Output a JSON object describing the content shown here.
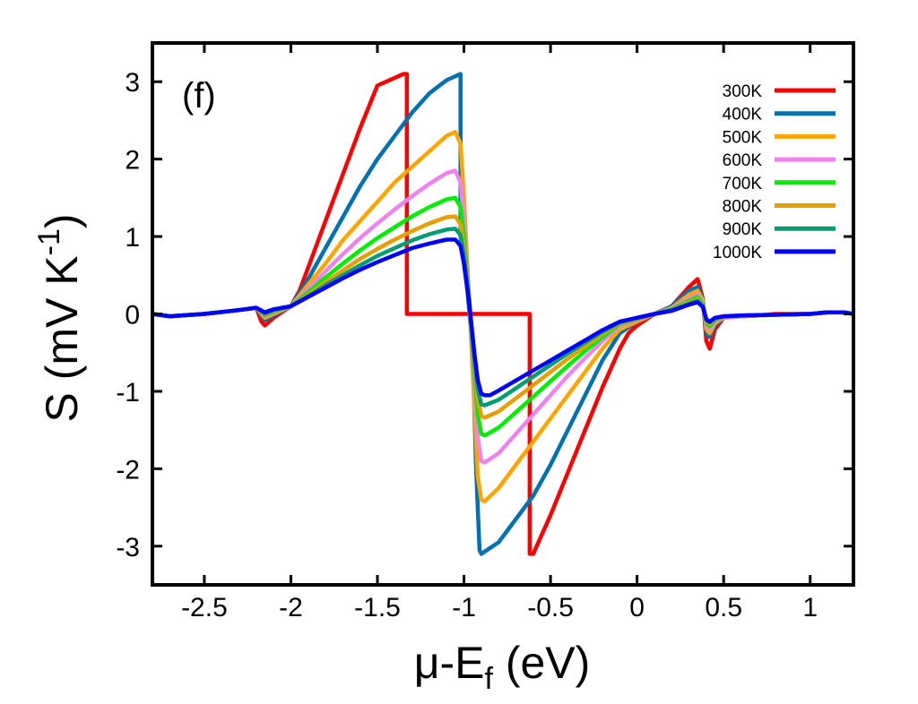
{
  "chart_data": {
    "type": "line",
    "title": "",
    "panel_label": "(f)",
    "xlabel": {
      "prefix": "μ-E",
      "sub": "f",
      "suffix": " (eV)"
    },
    "ylabel": {
      "prefix": "S (mV K",
      "sup": "-1",
      "suffix": ")"
    },
    "xlim": [
      -2.8,
      1.25
    ],
    "ylim": [
      -3.5,
      3.5
    ],
    "xticks": [
      -2.5,
      -2,
      -1.5,
      -1,
      -0.5,
      0,
      0.5,
      1
    ],
    "xtick_labels": [
      "-2.5",
      "-2",
      "-1.5",
      "-1",
      "-0.5",
      "0",
      "0.5",
      "1"
    ],
    "yticks": [
      -3,
      -2,
      -1,
      0,
      1,
      2,
      3
    ],
    "ytick_labels": [
      "-3",
      "-2",
      "-1",
      "0",
      "1",
      "2",
      "3"
    ],
    "legend_position": "top-right",
    "grid": false,
    "series": [
      {
        "name": "300K",
        "color": "#ff0000",
        "x": [
          -2.8,
          -2.7,
          -2.5,
          -2.3,
          -2.2,
          -2.17,
          -2.15,
          -2.1,
          -2.0,
          -1.95,
          -1.9,
          -1.8,
          -1.7,
          -1.6,
          -1.5,
          -1.4,
          -1.35,
          -1.33,
          -1.33,
          -0.92,
          -0.62,
          -0.62,
          -0.6,
          -0.5,
          -0.4,
          -0.3,
          -0.2,
          -0.1,
          -0.05,
          0,
          0.1,
          0.2,
          0.3,
          0.35,
          0.38,
          0.4,
          0.42,
          0.45,
          0.5,
          0.6,
          0.7,
          0.8,
          0.9,
          1.0,
          1.1,
          1.2,
          1.25
        ],
        "y": [
          0.0,
          -0.03,
          0.0,
          0.05,
          0.08,
          -0.1,
          -0.15,
          -0.05,
          0.1,
          0.3,
          0.6,
          1.2,
          1.8,
          2.4,
          2.95,
          3.05,
          3.1,
          3.1,
          0.0,
          0.0,
          0.0,
          -3.1,
          -3.1,
          -2.6,
          -2.05,
          -1.5,
          -0.95,
          -0.45,
          -0.25,
          -0.15,
          0.0,
          0.1,
          0.35,
          0.45,
          0.2,
          -0.35,
          -0.45,
          -0.2,
          -0.05,
          -0.03,
          -0.02,
          0.0,
          0.0,
          0.0,
          0.02,
          0.02,
          0.0
        ]
      },
      {
        "name": "400K",
        "color": "#0072b2",
        "x": [
          -2.8,
          -2.7,
          -2.5,
          -2.3,
          -2.2,
          -2.15,
          -2.1,
          -2.0,
          -1.9,
          -1.8,
          -1.7,
          -1.6,
          -1.5,
          -1.4,
          -1.3,
          -1.2,
          -1.1,
          -1.04,
          -1.02,
          -1.02,
          -0.98,
          -0.95,
          -0.93,
          -0.91,
          -0.9,
          -0.8,
          -0.7,
          -0.6,
          -0.5,
          -0.4,
          -0.3,
          -0.2,
          -0.1,
          0,
          0.1,
          0.2,
          0.3,
          0.35,
          0.38,
          0.4,
          0.42,
          0.45,
          0.5,
          0.6,
          0.8,
          1.0,
          1.1,
          1.2,
          1.25
        ],
        "y": [
          0.0,
          -0.03,
          0.0,
          0.05,
          0.08,
          -0.08,
          -0.02,
          0.1,
          0.45,
          0.85,
          1.25,
          1.65,
          2.0,
          2.3,
          2.6,
          2.85,
          3.02,
          3.08,
          3.1,
          1.0,
          0.3,
          -0.5,
          -2.0,
          -3.05,
          -3.1,
          -2.95,
          -2.65,
          -2.35,
          -1.95,
          -1.5,
          -1.05,
          -0.6,
          -0.25,
          -0.1,
          0.0,
          0.1,
          0.3,
          0.35,
          0.2,
          -0.25,
          -0.3,
          -0.15,
          -0.05,
          -0.03,
          -0.01,
          0.0,
          0.02,
          0.02,
          0.0
        ]
      },
      {
        "name": "500K",
        "color": "#ffa500",
        "x": [
          -2.8,
          -2.7,
          -2.5,
          -2.3,
          -2.2,
          -2.15,
          -2.1,
          -2.0,
          -1.9,
          -1.8,
          -1.7,
          -1.6,
          -1.5,
          -1.4,
          -1.3,
          -1.2,
          -1.1,
          -1.05,
          -1.02,
          -1.0,
          -0.97,
          -0.94,
          -0.92,
          -0.9,
          -0.88,
          -0.8,
          -0.7,
          -0.6,
          -0.5,
          -0.4,
          -0.3,
          -0.2,
          -0.1,
          0,
          0.1,
          0.2,
          0.3,
          0.35,
          0.38,
          0.4,
          0.42,
          0.45,
          0.5,
          0.6,
          0.8,
          1.0,
          1.1,
          1.2,
          1.25
        ],
        "y": [
          0.0,
          -0.03,
          0.0,
          0.05,
          0.08,
          -0.05,
          0.0,
          0.1,
          0.38,
          0.65,
          0.95,
          1.2,
          1.45,
          1.7,
          1.9,
          2.1,
          2.3,
          2.35,
          2.2,
          1.5,
          0.2,
          -1.2,
          -2.1,
          -2.4,
          -2.42,
          -2.25,
          -1.95,
          -1.65,
          -1.35,
          -1.05,
          -0.75,
          -0.45,
          -0.2,
          -0.1,
          0.0,
          0.08,
          0.25,
          0.3,
          0.18,
          -0.2,
          -0.25,
          -0.12,
          -0.05,
          -0.03,
          -0.01,
          0.0,
          0.02,
          0.02,
          0.0
        ]
      },
      {
        "name": "600K",
        "color": "#ee82ee",
        "x": [
          -2.8,
          -2.7,
          -2.5,
          -2.3,
          -2.2,
          -2.15,
          -2.1,
          -2.0,
          -1.9,
          -1.8,
          -1.7,
          -1.6,
          -1.5,
          -1.4,
          -1.3,
          -1.2,
          -1.1,
          -1.05,
          -1.02,
          -1.0,
          -0.97,
          -0.94,
          -0.92,
          -0.9,
          -0.88,
          -0.8,
          -0.7,
          -0.6,
          -0.5,
          -0.4,
          -0.3,
          -0.2,
          -0.1,
          0,
          0.1,
          0.2,
          0.3,
          0.35,
          0.38,
          0.4,
          0.42,
          0.45,
          0.5,
          0.6,
          0.8,
          1.0,
          1.1,
          1.2,
          1.25
        ],
        "y": [
          0.0,
          -0.03,
          0.0,
          0.05,
          0.08,
          -0.03,
          0.02,
          0.1,
          0.32,
          0.55,
          0.77,
          0.98,
          1.17,
          1.35,
          1.52,
          1.68,
          1.82,
          1.85,
          1.7,
          1.2,
          0.2,
          -0.9,
          -1.6,
          -1.9,
          -1.92,
          -1.8,
          -1.55,
          -1.3,
          -1.05,
          -0.8,
          -0.57,
          -0.35,
          -0.15,
          -0.08,
          0.0,
          0.07,
          0.2,
          0.25,
          0.15,
          -0.15,
          -0.2,
          -0.1,
          -0.05,
          -0.03,
          -0.01,
          0.0,
          0.02,
          0.02,
          0.0
        ]
      },
      {
        "name": "700K",
        "color": "#00ee00",
        "x": [
          -2.8,
          -2.7,
          -2.5,
          -2.3,
          -2.2,
          -2.15,
          -2.1,
          -2.0,
          -1.9,
          -1.8,
          -1.7,
          -1.6,
          -1.5,
          -1.4,
          -1.3,
          -1.2,
          -1.1,
          -1.05,
          -1.02,
          -1.0,
          -0.97,
          -0.94,
          -0.92,
          -0.9,
          -0.88,
          -0.8,
          -0.7,
          -0.6,
          -0.5,
          -0.4,
          -0.3,
          -0.2,
          -0.1,
          0,
          0.1,
          0.2,
          0.3,
          0.35,
          0.38,
          0.4,
          0.42,
          0.45,
          0.5,
          0.6,
          0.8,
          1.0,
          1.1,
          1.2,
          1.25
        ],
        "y": [
          0.0,
          -0.03,
          0.0,
          0.05,
          0.08,
          -0.02,
          0.03,
          0.1,
          0.28,
          0.47,
          0.65,
          0.82,
          0.98,
          1.12,
          1.26,
          1.38,
          1.48,
          1.5,
          1.38,
          1.0,
          0.2,
          -0.75,
          -1.3,
          -1.55,
          -1.57,
          -1.47,
          -1.27,
          -1.07,
          -0.87,
          -0.67,
          -0.48,
          -0.3,
          -0.13,
          -0.07,
          0.0,
          0.06,
          0.17,
          0.22,
          0.13,
          -0.12,
          -0.16,
          -0.08,
          -0.04,
          -0.02,
          -0.01,
          0.0,
          0.02,
          0.02,
          0.0
        ]
      },
      {
        "name": "800K",
        "color": "#e69f00",
        "x": [
          -2.8,
          -2.7,
          -2.5,
          -2.3,
          -2.2,
          -2.15,
          -2.1,
          -2.0,
          -1.9,
          -1.8,
          -1.7,
          -1.6,
          -1.5,
          -1.4,
          -1.3,
          -1.2,
          -1.1,
          -1.05,
          -1.02,
          -1.0,
          -0.97,
          -0.94,
          -0.92,
          -0.9,
          -0.88,
          -0.8,
          -0.7,
          -0.6,
          -0.5,
          -0.4,
          -0.3,
          -0.2,
          -0.1,
          0,
          0.1,
          0.2,
          0.3,
          0.35,
          0.38,
          0.4,
          0.42,
          0.45,
          0.5,
          0.6,
          0.8,
          1.0,
          1.1,
          1.2,
          1.25
        ],
        "y": [
          0.0,
          -0.03,
          0.0,
          0.05,
          0.08,
          -0.01,
          0.04,
          0.1,
          0.25,
          0.41,
          0.56,
          0.71,
          0.84,
          0.96,
          1.07,
          1.17,
          1.25,
          1.26,
          1.16,
          0.85,
          0.2,
          -0.65,
          -1.1,
          -1.32,
          -1.34,
          -1.26,
          -1.09,
          -0.92,
          -0.75,
          -0.58,
          -0.42,
          -0.26,
          -0.12,
          -0.06,
          0.0,
          0.05,
          0.15,
          0.19,
          0.11,
          -0.1,
          -0.13,
          -0.07,
          -0.04,
          -0.02,
          -0.01,
          0.0,
          0.02,
          0.02,
          0.0
        ]
      },
      {
        "name": "900K",
        "color": "#009e73",
        "x": [
          -2.8,
          -2.7,
          -2.5,
          -2.3,
          -2.2,
          -2.15,
          -2.1,
          -2.0,
          -1.9,
          -1.8,
          -1.7,
          -1.6,
          -1.5,
          -1.4,
          -1.3,
          -1.2,
          -1.1,
          -1.05,
          -1.02,
          -1.0,
          -0.97,
          -0.94,
          -0.92,
          -0.9,
          -0.88,
          -0.8,
          -0.7,
          -0.6,
          -0.5,
          -0.4,
          -0.3,
          -0.2,
          -0.1,
          0,
          0.1,
          0.2,
          0.3,
          0.35,
          0.38,
          0.4,
          0.42,
          0.45,
          0.5,
          0.6,
          0.8,
          1.0,
          1.1,
          1.2,
          1.25
        ],
        "y": [
          0.0,
          -0.03,
          0.0,
          0.05,
          0.08,
          0.0,
          0.05,
          0.1,
          0.23,
          0.37,
          0.5,
          0.63,
          0.75,
          0.85,
          0.95,
          1.03,
          1.09,
          1.1,
          1.02,
          0.75,
          0.18,
          -0.58,
          -0.97,
          -1.17,
          -1.18,
          -1.11,
          -0.96,
          -0.81,
          -0.66,
          -0.51,
          -0.37,
          -0.23,
          -0.11,
          -0.05,
          0.0,
          0.05,
          0.13,
          0.17,
          0.1,
          -0.08,
          -0.11,
          -0.06,
          -0.03,
          -0.02,
          -0.01,
          0.0,
          0.02,
          0.02,
          0.0
        ]
      },
      {
        "name": "1000K",
        "color": "#0000ff",
        "x": [
          -2.8,
          -2.7,
          -2.5,
          -2.3,
          -2.2,
          -2.15,
          -2.1,
          -2.0,
          -1.9,
          -1.8,
          -1.7,
          -1.6,
          -1.5,
          -1.4,
          -1.3,
          -1.2,
          -1.1,
          -1.05,
          -1.02,
          -1.0,
          -0.97,
          -0.94,
          -0.92,
          -0.9,
          -0.88,
          -0.85,
          -0.8,
          -0.7,
          -0.6,
          -0.5,
          -0.4,
          -0.3,
          -0.2,
          -0.1,
          0,
          0.1,
          0.2,
          0.3,
          0.35,
          0.38,
          0.4,
          0.42,
          0.45,
          0.5,
          0.6,
          0.8,
          1.0,
          1.1,
          1.2,
          1.25
        ],
        "y": [
          0.0,
          -0.03,
          0.0,
          0.05,
          0.08,
          0.02,
          0.06,
          0.1,
          0.22,
          0.34,
          0.46,
          0.57,
          0.67,
          0.76,
          0.85,
          0.91,
          0.96,
          0.96,
          0.88,
          0.65,
          0.15,
          -0.5,
          -0.86,
          -1.03,
          -1.05,
          -1.05,
          -0.99,
          -0.86,
          -0.73,
          -0.6,
          -0.47,
          -0.34,
          -0.21,
          -0.1,
          -0.05,
          0.0,
          0.04,
          0.12,
          0.15,
          0.09,
          -0.07,
          -0.1,
          -0.05,
          -0.03,
          -0.02,
          -0.01,
          0.0,
          0.02,
          0.02,
          0.0
        ]
      }
    ]
  }
}
